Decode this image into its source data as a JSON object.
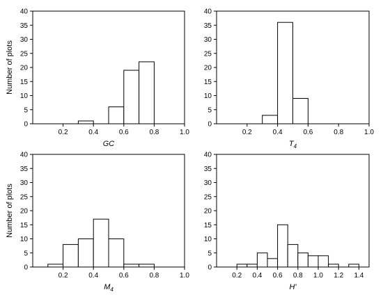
{
  "chart_data": [
    {
      "type": "bar",
      "xlabel": "GC",
      "xlabel_main": "GC",
      "xlabel_sub": "",
      "ylabel": "Number of plots",
      "xlim": [
        0.0,
        1.0
      ],
      "ylim": [
        0,
        40
      ],
      "bin_width": 0.1,
      "x_ticks": [
        0.2,
        0.4,
        0.6,
        0.8,
        1.0
      ],
      "y_ticks": [
        0,
        5,
        10,
        15,
        20,
        25,
        30,
        35,
        40
      ],
      "bin_starts": [
        0.3,
        0.5,
        0.6,
        0.7
      ],
      "values": [
        1,
        6,
        19,
        22
      ]
    },
    {
      "type": "bar",
      "xlabel": "T4",
      "xlabel_main": "T",
      "xlabel_sub": "4",
      "ylabel": "",
      "xlim": [
        0.0,
        1.0
      ],
      "ylim": [
        0,
        40
      ],
      "bin_width": 0.1,
      "x_ticks": [
        0.2,
        0.4,
        0.6,
        0.8,
        1.0
      ],
      "y_ticks": [
        0,
        5,
        10,
        15,
        20,
        25,
        30,
        35,
        40
      ],
      "bin_starts": [
        0.3,
        0.4,
        0.5
      ],
      "values": [
        3,
        36,
        9
      ]
    },
    {
      "type": "bar",
      "xlabel": "M4",
      "xlabel_main": "M",
      "xlabel_sub": "4",
      "ylabel": "Number of plots",
      "xlim": [
        0.0,
        1.0
      ],
      "ylim": [
        0,
        40
      ],
      "bin_width": 0.1,
      "x_ticks": [
        0.2,
        0.4,
        0.6,
        0.8,
        1.0
      ],
      "y_ticks": [
        0,
        5,
        10,
        15,
        20,
        25,
        30,
        35,
        40
      ],
      "bin_starts": [
        0.1,
        0.2,
        0.3,
        0.4,
        0.5,
        0.6,
        0.7
      ],
      "values": [
        1,
        8,
        10,
        17,
        10,
        1,
        1
      ]
    },
    {
      "type": "bar",
      "xlabel": "H'",
      "xlabel_main": "H'",
      "xlabel_sub": "",
      "ylabel": "",
      "xlim": [
        0.0,
        1.5
      ],
      "ylim": [
        0,
        40
      ],
      "bin_width": 0.1,
      "x_ticks": [
        0.2,
        0.4,
        0.6,
        0.8,
        1.0,
        1.2,
        1.4
      ],
      "y_ticks": [
        0,
        5,
        10,
        15,
        20,
        25,
        30,
        35,
        40
      ],
      "bin_starts": [
        0.2,
        0.3,
        0.4,
        0.5,
        0.6,
        0.7,
        0.8,
        0.9,
        1.0,
        1.1,
        1.3
      ],
      "values": [
        1,
        1,
        5,
        3,
        15,
        8,
        5,
        4,
        4,
        1,
        1
      ]
    }
  ]
}
